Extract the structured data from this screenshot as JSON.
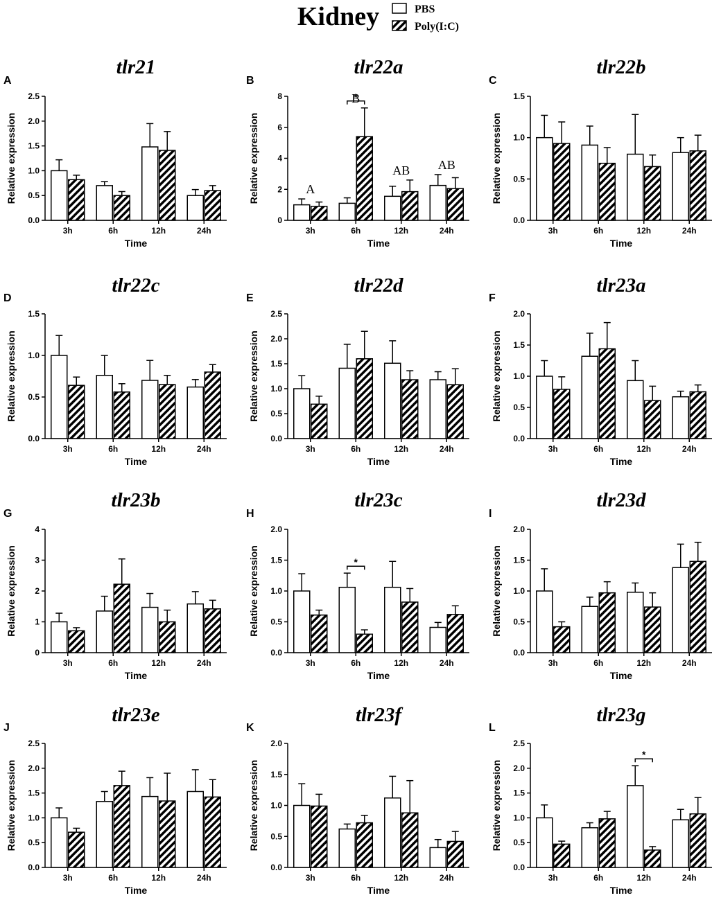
{
  "figure": {
    "title": "Kidney",
    "legend": [
      {
        "label": "PBS",
        "pattern": "open"
      },
      {
        "label": "Poly(I:C)",
        "pattern": "hatched"
      }
    ]
  },
  "chart_data": [
    {
      "panel": "A",
      "title": "tlr21",
      "type": "bar",
      "categories": [
        "3h",
        "6h",
        "12h",
        "24h"
      ],
      "xlabel": "Time",
      "ylabel": "Relative expression",
      "ylim": [
        0,
        2.5
      ],
      "yticks": [
        "0.0",
        "0.5",
        "1.0",
        "1.5",
        "2.0",
        "2.5"
      ],
      "series": [
        {
          "name": "PBS",
          "values": [
            1.0,
            0.7,
            1.48,
            0.5
          ],
          "errors": [
            0.22,
            0.08,
            0.47,
            0.12
          ]
        },
        {
          "name": "Poly(I:C)",
          "values": [
            0.82,
            0.5,
            1.41,
            0.6
          ],
          "errors": [
            0.09,
            0.08,
            0.38,
            0.1
          ]
        }
      ],
      "annotations": []
    },
    {
      "panel": "B",
      "title": "tlr22a",
      "type": "bar",
      "categories": [
        "3h",
        "6h",
        "12h",
        "24h"
      ],
      "xlabel": "Time",
      "ylabel": "Relative expression",
      "ylim": [
        0,
        8
      ],
      "yticks": [
        "0",
        "2",
        "4",
        "6",
        "8"
      ],
      "series": [
        {
          "name": "PBS",
          "values": [
            1.0,
            1.1,
            1.55,
            2.25
          ],
          "errors": [
            0.38,
            0.35,
            0.65,
            0.7
          ]
        },
        {
          "name": "Poly(I:C)",
          "values": [
            0.9,
            5.4,
            1.85,
            2.05
          ],
          "errors": [
            0.28,
            1.85,
            0.75,
            0.7
          ]
        }
      ],
      "annotations": [
        {
          "type": "group",
          "category": 0,
          "text": "A"
        },
        {
          "type": "group",
          "category": 1,
          "text": "B"
        },
        {
          "type": "group",
          "category": 2,
          "text": "AB"
        },
        {
          "type": "group",
          "category": 3,
          "text": "AB"
        },
        {
          "type": "sig",
          "category": 1,
          "text": "*"
        }
      ]
    },
    {
      "panel": "C",
      "title": "tlr22b",
      "type": "bar",
      "categories": [
        "3h",
        "6h",
        "12h",
        "24h"
      ],
      "xlabel": "Time",
      "ylabel": "Relative expression",
      "ylim": [
        0,
        1.5
      ],
      "yticks": [
        "0.0",
        "0.5",
        "1.0",
        "1.5"
      ],
      "series": [
        {
          "name": "PBS",
          "values": [
            1.0,
            0.91,
            0.8,
            0.82
          ],
          "errors": [
            0.27,
            0.23,
            0.48,
            0.18
          ]
        },
        {
          "name": "Poly(I:C)",
          "values": [
            0.93,
            0.69,
            0.65,
            0.84
          ],
          "errors": [
            0.26,
            0.19,
            0.14,
            0.19
          ]
        }
      ],
      "annotations": []
    },
    {
      "panel": "D",
      "title": "tlr22c",
      "type": "bar",
      "categories": [
        "3h",
        "6h",
        "12h",
        "24h"
      ],
      "xlabel": "Time",
      "ylabel": "Relative expression",
      "ylim": [
        0,
        1.5
      ],
      "yticks": [
        "0.0",
        "0.5",
        "1.0",
        "1.5"
      ],
      "series": [
        {
          "name": "PBS",
          "values": [
            1.0,
            0.76,
            0.7,
            0.62
          ],
          "errors": [
            0.24,
            0.24,
            0.24,
            0.09
          ]
        },
        {
          "name": "Poly(I:C)",
          "values": [
            0.64,
            0.56,
            0.65,
            0.8
          ],
          "errors": [
            0.1,
            0.1,
            0.11,
            0.09
          ]
        }
      ],
      "annotations": []
    },
    {
      "panel": "E",
      "title": "tlr22d",
      "type": "bar",
      "categories": [
        "3h",
        "6h",
        "12h",
        "24h"
      ],
      "xlabel": "Time",
      "ylabel": "Relative expression",
      "ylim": [
        0,
        2.5
      ],
      "yticks": [
        "0.0",
        "0.5",
        "1.0",
        "1.5",
        "2.0",
        "2.5"
      ],
      "series": [
        {
          "name": "PBS",
          "values": [
            1.0,
            1.41,
            1.51,
            1.18
          ],
          "errors": [
            0.26,
            0.48,
            0.45,
            0.16
          ]
        },
        {
          "name": "Poly(I:C)",
          "values": [
            0.69,
            1.6,
            1.18,
            1.08
          ],
          "errors": [
            0.16,
            0.55,
            0.18,
            0.32
          ]
        }
      ],
      "annotations": []
    },
    {
      "panel": "F",
      "title": "tlr23a",
      "type": "bar",
      "categories": [
        "3h",
        "6h",
        "12h",
        "24h"
      ],
      "xlabel": "Time",
      "ylabel": "Relative expression",
      "ylim": [
        0,
        2.0
      ],
      "yticks": [
        "0.0",
        "0.5",
        "1.0",
        "1.5",
        "2.0"
      ],
      "series": [
        {
          "name": "PBS",
          "values": [
            1.0,
            1.32,
            0.93,
            0.67
          ],
          "errors": [
            0.25,
            0.37,
            0.32,
            0.09
          ]
        },
        {
          "name": "Poly(I:C)",
          "values": [
            0.79,
            1.44,
            0.61,
            0.75
          ],
          "errors": [
            0.2,
            0.42,
            0.23,
            0.11
          ]
        }
      ],
      "annotations": []
    },
    {
      "panel": "G",
      "title": "tlr23b",
      "type": "bar",
      "categories": [
        "3h",
        "6h",
        "12h",
        "24h"
      ],
      "xlabel": "Time",
      "ylabel": "Relative expression",
      "ylim": [
        0,
        4
      ],
      "yticks": [
        "0",
        "1",
        "2",
        "3",
        "4"
      ],
      "series": [
        {
          "name": "PBS",
          "values": [
            1.0,
            1.35,
            1.47,
            1.58
          ],
          "errors": [
            0.28,
            0.48,
            0.45,
            0.4
          ]
        },
        {
          "name": "Poly(I:C)",
          "values": [
            0.71,
            2.22,
            1.0,
            1.42
          ],
          "errors": [
            0.1,
            0.82,
            0.38,
            0.28
          ]
        }
      ],
      "annotations": []
    },
    {
      "panel": "H",
      "title": "tlr23c",
      "type": "bar",
      "categories": [
        "3h",
        "6h",
        "12h",
        "24h"
      ],
      "xlabel": "Time",
      "ylabel": "Relative expression",
      "ylim": [
        0,
        2.0
      ],
      "yticks": [
        "0.0",
        "0.5",
        "1.0",
        "1.5",
        "2.0"
      ],
      "series": [
        {
          "name": "PBS",
          "values": [
            1.0,
            1.06,
            1.06,
            0.41
          ],
          "errors": [
            0.28,
            0.23,
            0.42,
            0.08
          ]
        },
        {
          "name": "Poly(I:C)",
          "values": [
            0.61,
            0.3,
            0.82,
            0.62
          ],
          "errors": [
            0.08,
            0.07,
            0.22,
            0.14
          ]
        }
      ],
      "annotations": [
        {
          "type": "sig",
          "category": 1,
          "text": "*"
        }
      ]
    },
    {
      "panel": "I",
      "title": "tlr23d",
      "type": "bar",
      "categories": [
        "3h",
        "6h",
        "12h",
        "24h"
      ],
      "xlabel": "Time",
      "ylabel": "Relative expression",
      "ylim": [
        0,
        2.0
      ],
      "yticks": [
        "0.0",
        "0.5",
        "1.0",
        "1.5",
        "2.0"
      ],
      "series": [
        {
          "name": "PBS",
          "values": [
            1.0,
            0.75,
            0.98,
            1.38
          ],
          "errors": [
            0.36,
            0.15,
            0.15,
            0.38
          ]
        },
        {
          "name": "Poly(I:C)",
          "values": [
            0.42,
            0.97,
            0.74,
            1.48
          ],
          "errors": [
            0.08,
            0.18,
            0.23,
            0.31
          ]
        }
      ],
      "annotations": []
    },
    {
      "panel": "J",
      "title": "tlr23e",
      "type": "bar",
      "categories": [
        "3h",
        "6h",
        "12h",
        "24h"
      ],
      "xlabel": "Time",
      "ylabel": "Relative expression",
      "ylim": [
        0,
        2.5
      ],
      "yticks": [
        "0.0",
        "0.5",
        "1.0",
        "1.5",
        "2.0",
        "2.5"
      ],
      "series": [
        {
          "name": "PBS",
          "values": [
            1.0,
            1.33,
            1.43,
            1.53
          ],
          "errors": [
            0.2,
            0.2,
            0.38,
            0.44
          ]
        },
        {
          "name": "Poly(I:C)",
          "values": [
            0.71,
            1.65,
            1.34,
            1.42
          ],
          "errors": [
            0.08,
            0.29,
            0.56,
            0.35
          ]
        }
      ],
      "annotations": []
    },
    {
      "panel": "K",
      "title": "tlr23f",
      "type": "bar",
      "categories": [
        "3h",
        "6h",
        "12h",
        "24h"
      ],
      "xlabel": "Time",
      "ylabel": "Relative expression",
      "ylim": [
        0,
        2.0
      ],
      "yticks": [
        "0.0",
        "0.5",
        "1.0",
        "1.5",
        "2.0"
      ],
      "series": [
        {
          "name": "PBS",
          "values": [
            1.0,
            0.62,
            1.12,
            0.32
          ],
          "errors": [
            0.35,
            0.08,
            0.35,
            0.13
          ]
        },
        {
          "name": "Poly(I:C)",
          "values": [
            0.99,
            0.72,
            0.88,
            0.42
          ],
          "errors": [
            0.19,
            0.12,
            0.52,
            0.16
          ]
        }
      ],
      "annotations": []
    },
    {
      "panel": "L",
      "title": "tlr23g",
      "type": "bar",
      "categories": [
        "3h",
        "6h",
        "12h",
        "24h"
      ],
      "xlabel": "Time",
      "ylabel": "Relative expression",
      "ylim": [
        0,
        2.5
      ],
      "yticks": [
        "0.0",
        "0.5",
        "1.0",
        "1.5",
        "2.0",
        "2.5"
      ],
      "series": [
        {
          "name": "PBS",
          "values": [
            1.0,
            0.8,
            1.65,
            0.96
          ],
          "errors": [
            0.26,
            0.1,
            0.4,
            0.21
          ]
        },
        {
          "name": "Poly(I:C)",
          "values": [
            0.47,
            0.98,
            0.35,
            1.08
          ],
          "errors": [
            0.06,
            0.15,
            0.07,
            0.33
          ]
        }
      ],
      "annotations": [
        {
          "type": "sig",
          "category": 2,
          "text": "*"
        }
      ]
    }
  ]
}
